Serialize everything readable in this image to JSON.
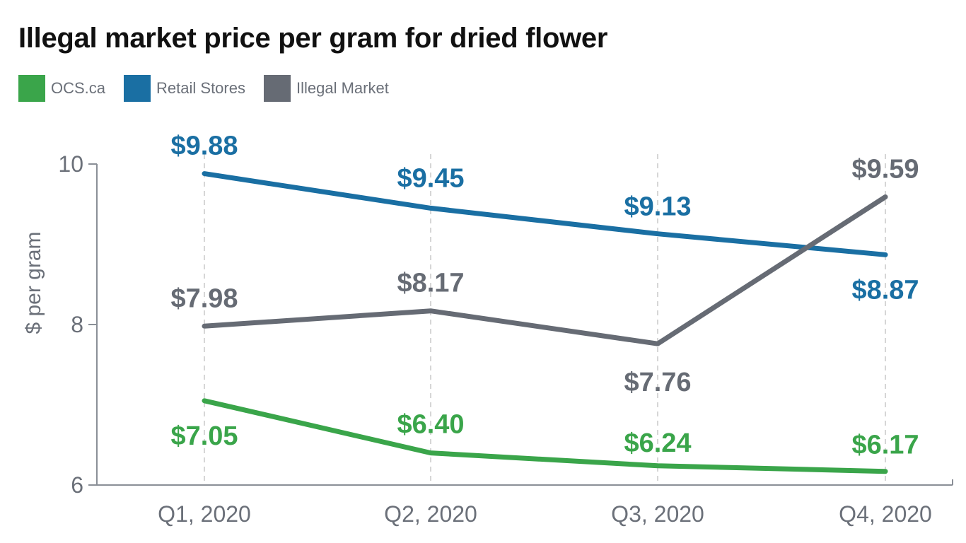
{
  "chart_data": {
    "type": "line",
    "title": "Illegal market price per gram for dried flower",
    "xlabel": "",
    "ylabel": "$ per gram",
    "categories": [
      "Q1, 2020",
      "Q2, 2020",
      "Q3, 2020",
      "Q4, 2020"
    ],
    "ylim": [
      6,
      10
    ],
    "yticks": [
      6,
      8,
      10
    ],
    "grid": "vertical dashed at categories",
    "legend_placement": "top-left",
    "series": [
      {
        "name": "OCS.ca",
        "color": "#3aa54a",
        "values": [
          7.05,
          6.4,
          6.24,
          6.17
        ],
        "labels": [
          "$7.05",
          "$6.40",
          "$6.24",
          "$6.17"
        ]
      },
      {
        "name": "Retail Stores",
        "color": "#1a6fa3",
        "values": [
          9.88,
          9.45,
          9.13,
          8.87
        ],
        "labels": [
          "$9.88",
          "$9.45",
          "$9.13",
          "$8.87"
        ]
      },
      {
        "name": "Illegal Market",
        "color": "#666b74",
        "values": [
          7.98,
          8.17,
          7.76,
          9.59
        ],
        "labels": [
          "$7.98",
          "$8.17",
          "$7.76",
          "$9.59"
        ]
      }
    ]
  }
}
